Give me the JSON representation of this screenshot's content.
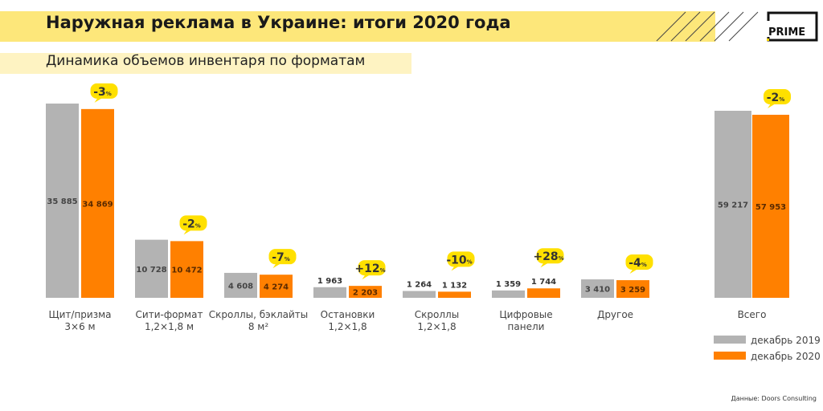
{
  "header": {
    "title": "Наружная реклама в Украине: итоги 2020 года",
    "subtitle": "Динамика объемов инвентаря по форматам",
    "logo": "PRIME"
  },
  "source": "Данные: Doors Consulting",
  "colors": {
    "dec2019": "#b3b3b3",
    "dec2020": "#ff8000",
    "badge": "#ffe000",
    "title_band": "#fde77a"
  },
  "chart_data": {
    "type": "bar",
    "title": "",
    "categories": [
      "Щит/призма\n3×6 м",
      "Сити-формат\n1,2×1,8 м",
      "Скроллы, бэклайты\n8 м²",
      "Остановки\n1,2×1,8",
      "Скроллы\n1,2×1,8",
      "Цифровые\nпанели",
      "Другое",
      "Всего"
    ],
    "series": [
      {
        "name": "декабрь 2019",
        "values": [
          35885,
          10728,
          4608,
          1963,
          1264,
          1359,
          3410,
          59217
        ],
        "labels": [
          "35 885",
          "10 728",
          "4 608",
          "1 963",
          "1 264",
          "1 359",
          "3 410",
          "59 217"
        ]
      },
      {
        "name": "декабрь 2020",
        "values": [
          34869,
          10472,
          4274,
          2203,
          1132,
          1744,
          3259,
          57953
        ],
        "labels": [
          "34 869",
          "10 472",
          "4 274",
          "2 203",
          "1 132",
          "1 744",
          "3 259",
          "57 953"
        ]
      }
    ],
    "changes": [
      "-3",
      "-2",
      "-7",
      "+12",
      "-10",
      "+28",
      "-4",
      "-2"
    ],
    "change_unit": "%",
    "legend_position": "bottom-right",
    "grid": false
  }
}
